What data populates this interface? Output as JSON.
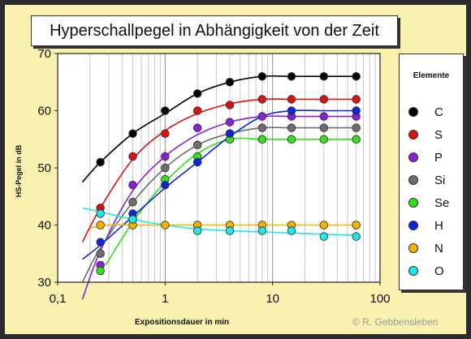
{
  "chart_data": {
    "type": "scatter",
    "title": "Hyperschallpegel in Abhängigkeit von der Zeit",
    "xlabel": "Expositionsdauer in min",
    "ylabel": "HS-Pegel in dB",
    "xscale": "log",
    "xlim": [
      0.1,
      100
    ],
    "ylim": [
      30,
      70
    ],
    "xticks": [
      0.1,
      1,
      10,
      100
    ],
    "xtick_labels": [
      "0,1",
      "1",
      "10",
      "100"
    ],
    "yticks": [
      30,
      40,
      50,
      60,
      70
    ],
    "ytick_labels": [
      "30",
      "40",
      "50",
      "60",
      "70"
    ],
    "grid": "minor vertical only",
    "legend_title": "Elemente",
    "legend_position": "right",
    "series": [
      {
        "name": "C",
        "color": "#000000",
        "x": [
          0.25,
          0.5,
          1,
          2,
          4,
          8,
          15,
          30,
          60
        ],
        "values": [
          51,
          56,
          60,
          63,
          65,
          66,
          66,
          66,
          66
        ],
        "fit_x": [
          0.17,
          0.25,
          0.5,
          1,
          2,
          4,
          8,
          15,
          30,
          60
        ],
        "fit_y": [
          47.5,
          51,
          56,
          59.5,
          63,
          65,
          66,
          66,
          66,
          66
        ]
      },
      {
        "name": "S",
        "color": "#e01010",
        "x": [
          0.25,
          0.5,
          1,
          2,
          4,
          8,
          15,
          30,
          60
        ],
        "values": [
          43,
          52,
          56,
          60,
          61,
          62,
          62,
          62,
          62
        ],
        "fit_x": [
          0.17,
          0.25,
          0.5,
          1,
          2,
          4,
          8,
          15,
          30,
          60
        ],
        "fit_y": [
          37,
          43,
          51.5,
          56.5,
          59.5,
          61.2,
          62,
          62,
          62,
          62
        ]
      },
      {
        "name": "P",
        "color": "#8a1fd6",
        "x": [
          0.25,
          0.5,
          1,
          2,
          4,
          8,
          15,
          30,
          60
        ],
        "values": [
          33,
          47,
          52,
          57,
          58,
          59,
          59,
          59,
          59
        ],
        "fit_x": [
          0.17,
          0.25,
          0.5,
          1,
          2,
          4,
          8,
          15,
          30,
          60
        ],
        "fit_y": [
          27,
          35.5,
          46,
          52,
          55.8,
          58,
          59,
          59,
          59,
          59
        ]
      },
      {
        "name": "Si",
        "color": "#6e6e6e",
        "x": [
          0.25,
          0.5,
          1,
          2,
          4,
          8,
          15,
          30,
          60
        ],
        "values": [
          35,
          44,
          50,
          54,
          56,
          57,
          57,
          57,
          57
        ],
        "fit_x": [
          0.17,
          0.25,
          0.5,
          1,
          2,
          4,
          8,
          15,
          30,
          60
        ],
        "fit_y": [
          30,
          36,
          44,
          50,
          54,
          56,
          57,
          57,
          57,
          57
        ]
      },
      {
        "name": "Se",
        "color": "#33e01a",
        "x": [
          0.25,
          0.5,
          1,
          2,
          4,
          8,
          15,
          30,
          60
        ],
        "values": [
          32,
          41,
          48,
          52,
          55,
          55,
          55,
          55,
          55
        ],
        "fit_x": [
          0.28,
          0.5,
          1,
          2,
          4,
          8,
          15,
          30,
          60
        ],
        "fit_y": [
          33,
          40.5,
          47.5,
          52.5,
          55,
          55,
          55,
          55,
          55
        ]
      },
      {
        "name": "H",
        "color": "#1024d8",
        "x": [
          0.25,
          0.5,
          1,
          2,
          4,
          15,
          60
        ],
        "values": [
          37,
          42,
          47,
          51,
          56,
          60,
          60
        ],
        "fit_x": [
          0.17,
          0.25,
          0.5,
          1,
          2,
          4,
          8,
          15,
          30,
          60
        ],
        "fit_y": [
          34,
          36.5,
          41.5,
          46.5,
          51,
          55.5,
          59,
          60,
          60,
          60
        ]
      },
      {
        "name": "N",
        "color": "#f5b400",
        "x": [
          0.25,
          0.5,
          1,
          2,
          4,
          8,
          15,
          30,
          60
        ],
        "values": [
          40,
          40,
          40,
          40,
          40,
          40,
          40,
          40,
          40
        ],
        "fit_x": [
          0.2,
          0.3,
          0.5,
          1,
          2,
          4,
          8,
          15,
          30,
          60
        ],
        "fit_y": [
          39.5,
          40,
          40,
          40,
          40,
          40,
          40,
          40,
          40,
          40
        ]
      },
      {
        "name": "O",
        "color": "#1ee8e8",
        "x": [
          0.25,
          0.5,
          2,
          4,
          8,
          15,
          30,
          60
        ],
        "values": [
          42,
          41,
          39,
          39,
          39,
          39,
          38,
          38
        ],
        "fit_x": [
          0.17,
          0.25,
          0.5,
          1,
          2,
          4,
          8,
          15,
          30,
          60
        ],
        "fit_y": [
          43,
          42.3,
          41,
          40,
          39.3,
          39,
          38.8,
          38.6,
          38.4,
          38.2
        ]
      }
    ]
  },
  "copyright": "© R. Gebbensleben"
}
